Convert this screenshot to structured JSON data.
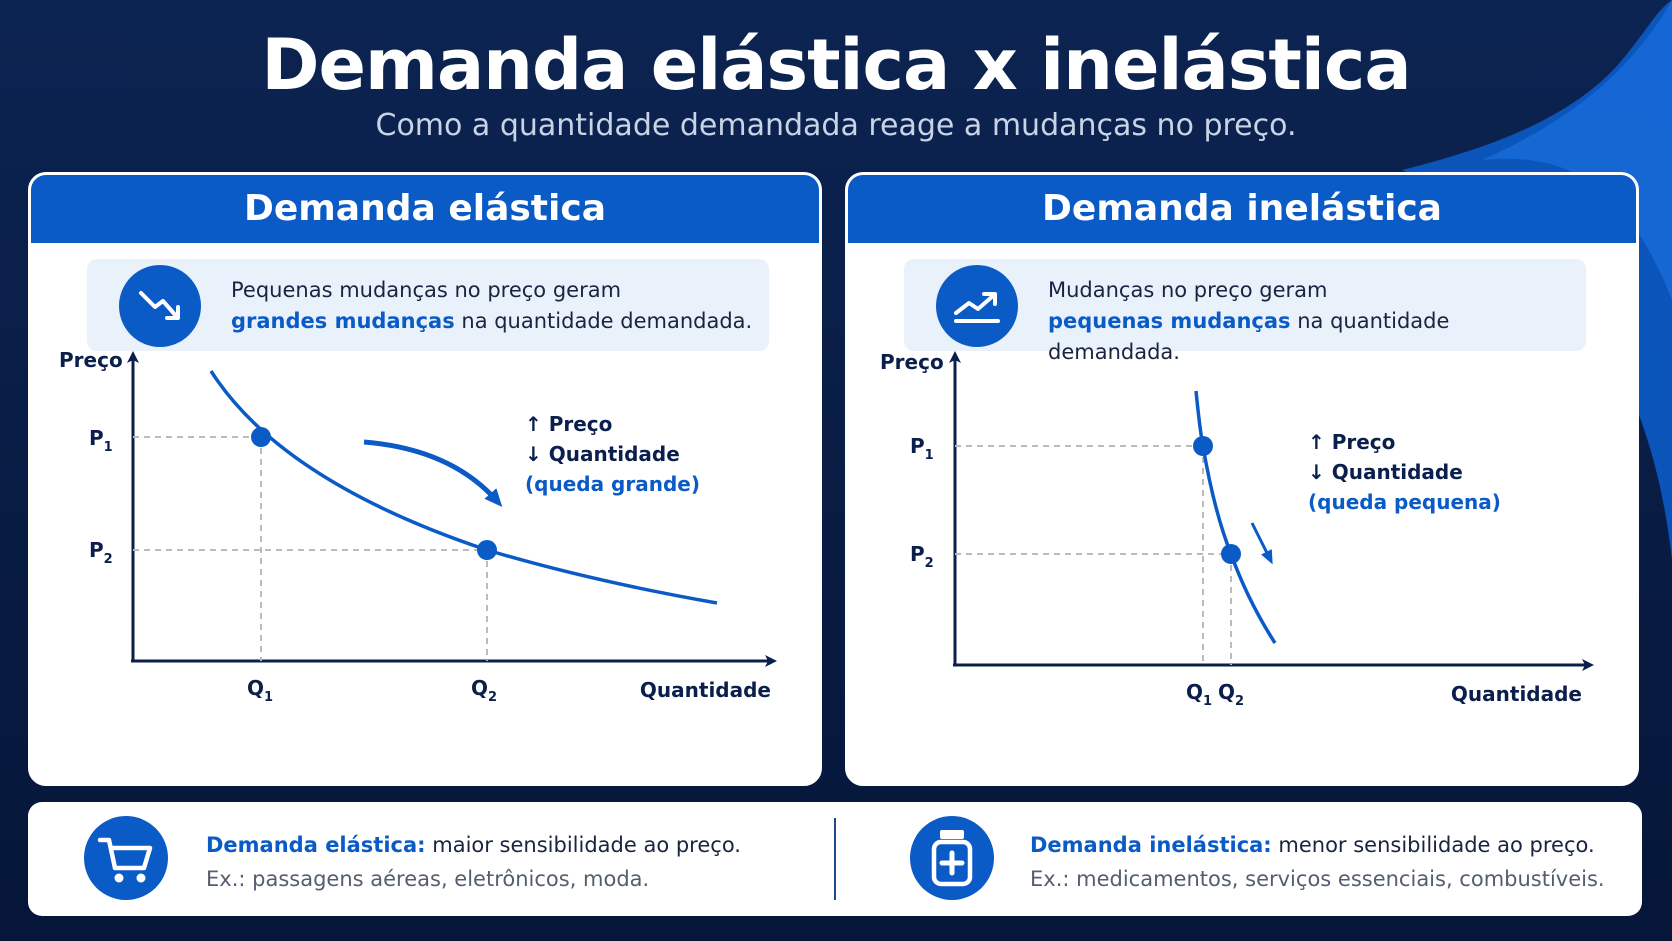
{
  "page": {
    "title": "Demanda elástica x inelástica",
    "subtitle": "Como a quantidade demandada reage a mudanças no preço."
  },
  "colors": {
    "accent": "#0b5bc7",
    "navy": "#0b1f4d",
    "background": "#0c2452"
  },
  "elastic": {
    "header": "Demanda elástica",
    "info_line1": "Pequenas mudanças no preço geram",
    "info_highlight": "grandes mudanças",
    "info_rest": " na quantidade demandada.",
    "icon": "trend-down-icon",
    "chart_data": {
      "type": "line",
      "xlabel": "Quantidade",
      "ylabel": "Preço",
      "p1_label": "P",
      "p1_sub": "1",
      "p2_label": "P",
      "p2_sub": "2",
      "q1_label": "Q",
      "q1_sub": "1",
      "q2_label": "Q",
      "q2_sub": "2",
      "legend_up": "↑ Preço",
      "legend_down": "↓ Quantidade",
      "legend_note": "(queda grande)"
    }
  },
  "inelastic": {
    "header": "Demanda inelástica",
    "info_line1": "Mudanças no preço geram",
    "info_highlight": "pequenas mudanças",
    "info_rest": " na quantidade demandada.",
    "icon": "trend-up-icon",
    "chart_data": {
      "type": "line",
      "xlabel": "Quantidade",
      "ylabel": "Preço",
      "p1_label": "P",
      "p1_sub": "1",
      "p2_label": "P",
      "p2_sub": "2",
      "q1_label": "Q",
      "q1_sub": "1",
      "q2_label": "Q",
      "q2_sub": "2",
      "legend_up": "↑ Preço",
      "legend_down": "↓ Quantidade",
      "legend_note": "(queda pequena)"
    }
  },
  "footer": {
    "elastic_title": "Demanda elástica:",
    "elastic_desc": " maior sensibilidade ao preço.",
    "elastic_example": "Ex.: passagens aéreas, eletrônicos, moda.",
    "elastic_icon": "shopping-cart-icon",
    "inelastic_title": "Demanda inelástica:",
    "inelastic_desc": " menor sensibilidade ao preço.",
    "inelastic_example": "Ex.: medicamentos, serviços essenciais, combustíveis.",
    "inelastic_icon": "medicine-bottle-icon"
  }
}
